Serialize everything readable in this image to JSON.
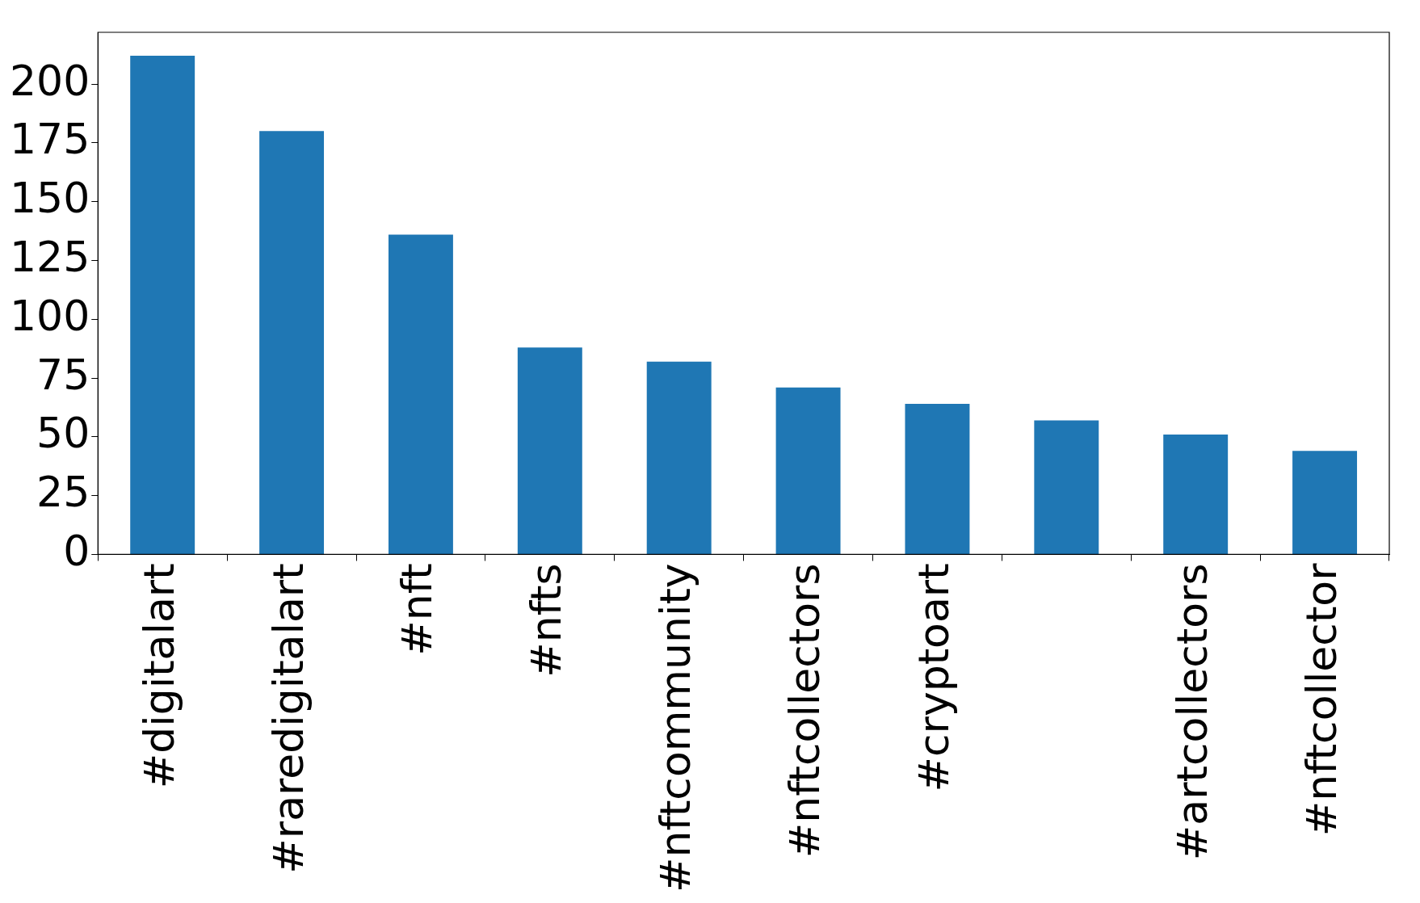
{
  "chart_data": {
    "type": "bar",
    "categories": [
      "#digitalart",
      "#raredigitalart",
      "#nft",
      "#nfts",
      "#nftcommunity",
      "#nftcollectors",
      "#cryptoart",
      null,
      "#artcollectors",
      "#nftcollector"
    ],
    "values": [
      212,
      180,
      136,
      88,
      82,
      71,
      64,
      57,
      51,
      44
    ],
    "color": "#1f77b4",
    "ylim": [
      0,
      222
    ],
    "yticks": [
      0,
      25,
      50,
      75,
      100,
      125,
      150,
      175,
      200
    ],
    "grid": false,
    "legend": false
  }
}
